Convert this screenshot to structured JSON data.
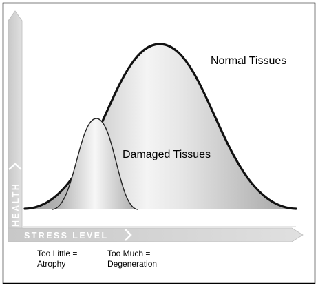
{
  "figure": {
    "curve_labels": {
      "normal": "Normal Tissues",
      "damaged": "Damaged Tissues"
    },
    "axes": {
      "y_label": "HEALTH",
      "x_label": "STRESS LEVEL"
    },
    "notes": {
      "too_little_line1": "Too Little =",
      "too_little_line2": "Atrophy",
      "too_much_line1": "Too Much =",
      "too_much_line2": "Degeneration"
    }
  },
  "colors": {
    "border": "#000000",
    "curve_stroke": "#111111",
    "arrow_fill": "#cfcfcf",
    "arrow_text": "#ffffff",
    "text": "#000000"
  }
}
